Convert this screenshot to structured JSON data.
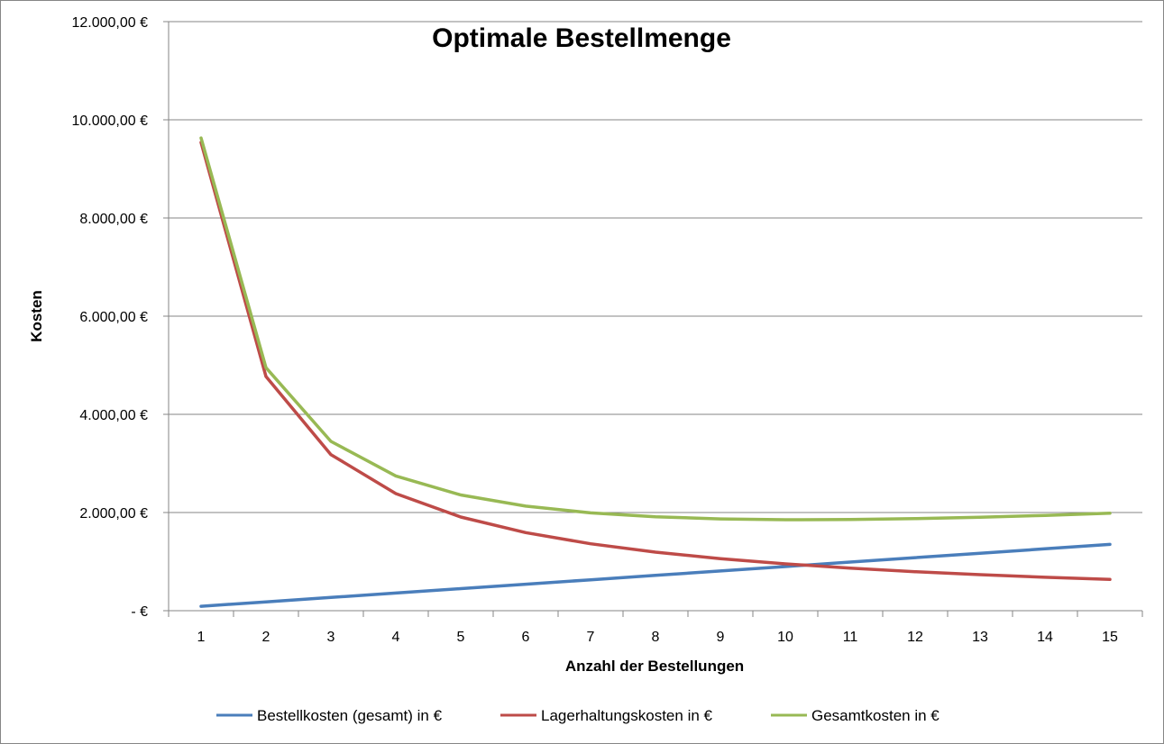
{
  "chart_data": {
    "type": "line",
    "title": "Optimale Bestellmenge",
    "xlabel": "Anzahl der Bestellungen",
    "ylabel": "Kosten",
    "categories": [
      "1",
      "2",
      "3",
      "4",
      "5",
      "6",
      "7",
      "8",
      "9",
      "10",
      "11",
      "12",
      "13",
      "14",
      "15"
    ],
    "ylim": [
      0,
      12000
    ],
    "yticks": [
      0,
      2000,
      4000,
      6000,
      8000,
      10000,
      12000
    ],
    "ytick_labels": [
      "-  €",
      "2.000,00 €",
      "4.000,00 €",
      "6.000,00 €",
      "8.000,00 €",
      "10.000,00 €",
      "12.000,00 €"
    ],
    "grid": "horizontal",
    "legend_position": "bottom",
    "series": [
      {
        "name": "Bestellkosten (gesamt) in €",
        "color": "#4A7EBB",
        "values": [
          90,
          180,
          270,
          360,
          450,
          540,
          630,
          720,
          810,
          900,
          990,
          1080,
          1170,
          1260,
          1350
        ]
      },
      {
        "name": "Lagerhaltungskosten in €",
        "color": "#BE4B48",
        "values": [
          9540,
          4770,
          3180,
          2385,
          1908,
          1590,
          1363,
          1193,
          1060,
          954,
          867,
          795,
          734,
          681,
          636
        ]
      },
      {
        "name": "Gesamtkosten in €",
        "color": "#98B954",
        "values": [
          9630,
          4950,
          3450,
          2745,
          2358,
          2130,
          1993,
          1913,
          1870,
          1854,
          1857,
          1875,
          1904,
          1941,
          1986
        ]
      }
    ]
  }
}
